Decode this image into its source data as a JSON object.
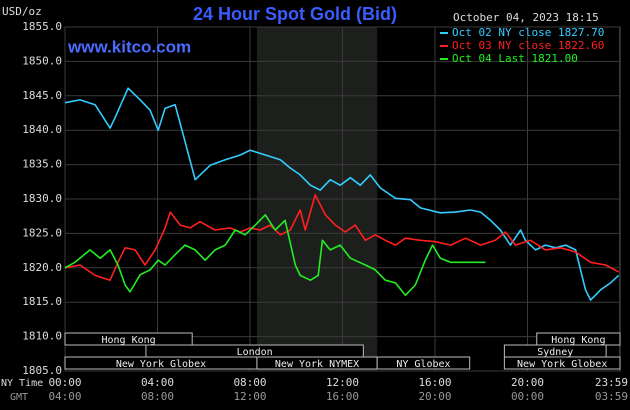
{
  "chart_data": {
    "type": "line",
    "title": "24 Hour Spot Gold (Bid)",
    "timestamp": "October 04, 2023 18:15",
    "watermark": "www.kitco.com",
    "y_label": "USD/oz",
    "x_label": "NY Time",
    "x2_label": "GMT",
    "xlim": [
      0,
      24
    ],
    "ylim": [
      1805,
      1855
    ],
    "xticks": [
      {
        "value": 0,
        "label": "00:00"
      },
      {
        "value": 4,
        "label": "04:00"
      },
      {
        "value": 8,
        "label": "08:00"
      },
      {
        "value": 12,
        "label": "12:00"
      },
      {
        "value": 16,
        "label": "16:00"
      },
      {
        "value": 20,
        "label": "20:00"
      },
      {
        "value": 23.98,
        "label": "23:59"
      }
    ],
    "gmt_labels": [
      "04:00",
      "08:00",
      "12:00",
      "16:00",
      "20:00",
      "00:00",
      "03:59"
    ],
    "yticks": [
      {
        "value": 1805,
        "label": "1805.0"
      },
      {
        "value": 1810,
        "label": "1810.0"
      },
      {
        "value": 1815,
        "label": "1815.0"
      },
      {
        "value": 1820,
        "label": "1820.0"
      },
      {
        "value": 1825,
        "label": "1825.0"
      },
      {
        "value": 1830,
        "label": "1830.0"
      },
      {
        "value": 1835,
        "label": "1835.0"
      },
      {
        "value": 1840,
        "label": "1840.0"
      },
      {
        "value": 1845,
        "label": "1845.0"
      },
      {
        "value": 1850,
        "label": "1850.0"
      },
      {
        "value": 1855,
        "label": "1855.0"
      }
    ],
    "grid": true,
    "legend": "top-right",
    "sessions": [
      {
        "label": "Hong Kong",
        "start": 0,
        "end": 5.5,
        "row": 0
      },
      {
        "label": "Hong Kong",
        "start": 20.4,
        "end": 24,
        "row": 0
      },
      {
        "label": "London",
        "start": 3.5,
        "end": 12.9,
        "row": 1
      },
      {
        "label": "Sydney",
        "start": 19,
        "end": 23.4,
        "row": 1
      },
      {
        "label": "New York Globex",
        "start": 0,
        "end": 8.3,
        "row": 2
      },
      {
        "label": "New York NYMEX",
        "start": 8.3,
        "end": 13.5,
        "row": 2,
        "shade": true
      },
      {
        "label": "NY Globex",
        "start": 13.5,
        "end": 17.5,
        "row": 2
      },
      {
        "label": "New York Globex",
        "start": 19,
        "end": 24,
        "row": 2
      }
    ],
    "series": [
      {
        "name": "Oct 02 NY close 1827.70",
        "color": "#33ccff",
        "x": [
          0,
          0.65,
          1.3,
          1.95,
          2.16,
          2.73,
          3.25,
          3.68,
          4.03,
          4.33,
          4.76,
          5.06,
          5.63,
          6.28,
          6.93,
          7.58,
          8.01,
          8.66,
          9.31,
          9.74,
          10.17,
          10.61,
          11.04,
          11.47,
          11.9,
          12.34,
          12.77,
          13.2,
          13.64,
          14.29,
          14.94,
          15.37,
          16.23,
          16.88,
          17.53,
          17.97,
          18.4,
          18.83,
          19.26,
          19.7,
          19.91,
          20.35,
          20.78,
          21.21,
          21.65,
          22.08,
          22.51,
          22.73,
          23.16,
          23.59,
          23.94
        ],
        "values": [
          1844.0,
          1844.4,
          1843.7,
          1840.3,
          1841.8,
          1846.1,
          1844.4,
          1842.9,
          1840.0,
          1843.2,
          1843.7,
          1840.0,
          1832.8,
          1834.9,
          1835.7,
          1836.4,
          1837.1,
          1836.4,
          1835.7,
          1834.5,
          1833.5,
          1832.0,
          1831.3,
          1832.8,
          1832.0,
          1833.1,
          1832.0,
          1833.5,
          1831.6,
          1830.1,
          1829.9,
          1828.7,
          1828.0,
          1828.1,
          1828.4,
          1828.1,
          1826.9,
          1825.5,
          1823.3,
          1825.5,
          1824.0,
          1822.6,
          1823.3,
          1822.9,
          1823.3,
          1822.6,
          1816.8,
          1815.3,
          1816.8,
          1817.8,
          1818.9
        ]
      },
      {
        "name": "Oct 03 NY close 1822.60",
        "color": "#ff2020",
        "x": [
          0,
          0.65,
          1.3,
          1.95,
          2.29,
          2.6,
          3.03,
          3.46,
          3.9,
          4.33,
          4.55,
          4.98,
          5.41,
          5.84,
          6.49,
          7.14,
          7.58,
          8.01,
          8.44,
          8.87,
          9.31,
          9.74,
          10.17,
          10.39,
          10.82,
          11.26,
          11.69,
          12.12,
          12.55,
          12.99,
          13.42,
          13.85,
          14.29,
          14.72,
          15.37,
          16.02,
          16.67,
          17.32,
          17.97,
          18.61,
          19.05,
          19.48,
          20.13,
          20.78,
          21.43,
          22.08,
          22.73,
          23.38,
          23.94
        ],
        "values": [
          1820.0,
          1820.4,
          1818.9,
          1818.2,
          1820.8,
          1822.9,
          1822.6,
          1820.4,
          1822.6,
          1825.8,
          1828.1,
          1826.2,
          1825.8,
          1826.7,
          1825.5,
          1825.8,
          1825.2,
          1825.8,
          1825.5,
          1826.2,
          1824.8,
          1825.5,
          1828.4,
          1825.5,
          1830.6,
          1827.7,
          1826.2,
          1825.2,
          1826.2,
          1824.0,
          1824.8,
          1824.0,
          1823.3,
          1824.3,
          1824.0,
          1823.8,
          1823.3,
          1824.3,
          1823.3,
          1824.0,
          1825.2,
          1823.3,
          1824.0,
          1822.6,
          1822.9,
          1822.3,
          1820.8,
          1820.4,
          1819.4
        ]
      },
      {
        "name": "Oct 04 Last 1821.00",
        "color": "#22ee22",
        "x": [
          0,
          0.43,
          1.08,
          1.52,
          1.95,
          2.29,
          2.6,
          2.81,
          3.25,
          3.68,
          4.03,
          4.33,
          4.76,
          5.19,
          5.63,
          6.06,
          6.49,
          6.93,
          7.36,
          7.79,
          8.23,
          8.66,
          9.09,
          9.52,
          9.96,
          10.17,
          10.61,
          10.95,
          11.13,
          11.47,
          11.9,
          12.34,
          12.99,
          13.42,
          13.85,
          14.29,
          14.72,
          15.15,
          15.58,
          15.89,
          16.23,
          16.67,
          17.32,
          18.18
        ],
        "values": [
          1820.0,
          1820.8,
          1822.6,
          1821.4,
          1822.6,
          1820.4,
          1817.5,
          1816.5,
          1819.0,
          1819.7,
          1821.1,
          1820.4,
          1821.9,
          1823.3,
          1822.6,
          1821.1,
          1822.6,
          1823.3,
          1825.5,
          1824.8,
          1826.2,
          1827.7,
          1825.5,
          1826.9,
          1820.4,
          1818.9,
          1818.2,
          1818.9,
          1824.0,
          1822.6,
          1823.3,
          1821.4,
          1820.4,
          1819.7,
          1818.2,
          1817.8,
          1816.0,
          1817.5,
          1821.1,
          1823.3,
          1821.4,
          1820.8,
          1820.8,
          1820.8
        ]
      }
    ]
  }
}
